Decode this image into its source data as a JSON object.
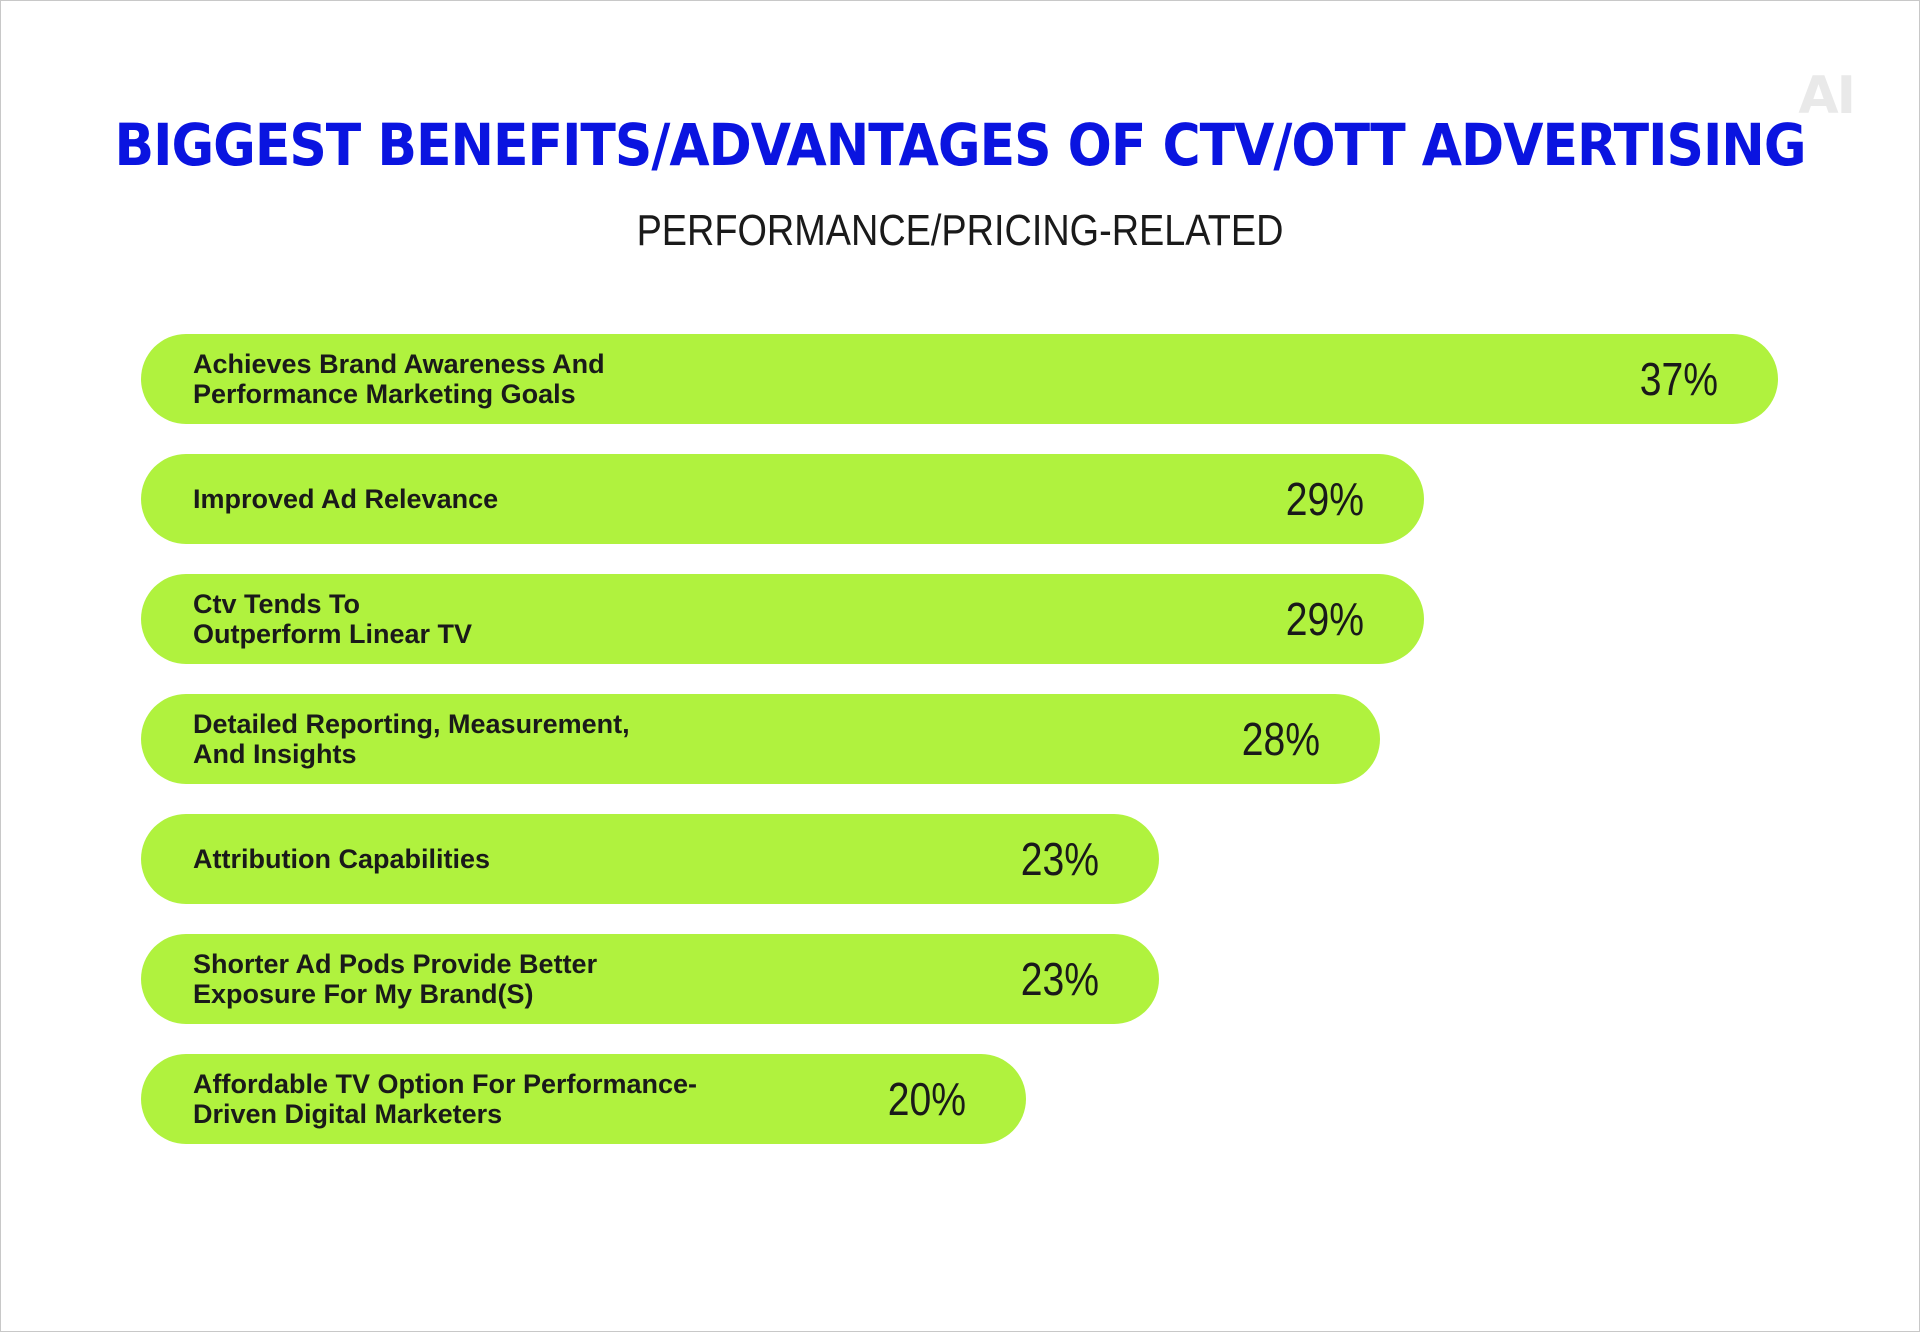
{
  "logo": "AI",
  "colors": {
    "title": "#0a14e0",
    "bar": "#b0f23e",
    "text": "#1a1a1a"
  },
  "chart_data": {
    "type": "bar",
    "orientation": "horizontal",
    "title": "BIGGEST BENEFITS/ADVANTAGES OF CTV/OTT ADVERTISING",
    "subtitle": "PERFORMANCE/PRICING-RELATED",
    "xlabel": "",
    "ylabel": "",
    "xlim": [
      0,
      37
    ],
    "categories": [
      "Achieves Brand Awareness And\nPerformance Marketing Goals",
      "Improved Ad Relevance",
      "Ctv Tends To\nOutperform Linear TV",
      "Detailed Reporting, Measurement,\nAnd Insights",
      "Attribution Capabilities",
      "Shorter Ad Pods Provide Better\nExposure For My Brand(S)",
      "Affordable TV Option For Performance-\nDriven Digital Marketers"
    ],
    "values": [
      37,
      29,
      29,
      28,
      23,
      23,
      20
    ],
    "value_labels": [
      "37%",
      "29%",
      "29%",
      "28%",
      "23%",
      "23%",
      "20%"
    ]
  }
}
